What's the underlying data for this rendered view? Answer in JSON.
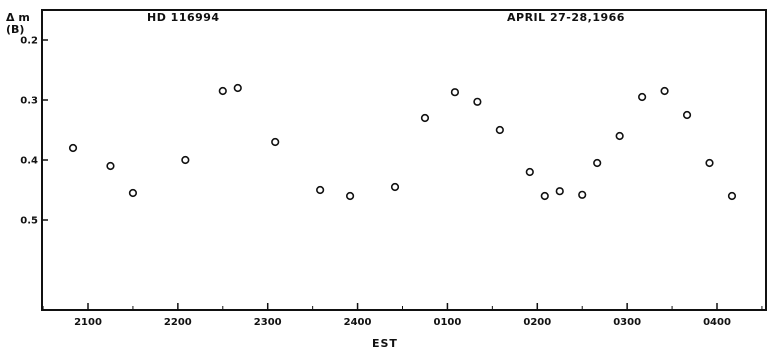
{
  "chart_data": {
    "type": "scatter",
    "title": "",
    "xlabel": "EST",
    "ylabel": "Δ m",
    "ylabel_sub": "(B)",
    "annotations": [
      "HD 116994",
      "APRIL 27-28,1966"
    ],
    "y_inverted": true,
    "ylim": [
      0.15,
      0.65
    ],
    "yticks": [
      "0.2",
      "0.3",
      "0.4",
      "0.5"
    ],
    "xticks": [
      "2100",
      "2200",
      "2300",
      "2400",
      "0100",
      "0200",
      "0300",
      "0400"
    ],
    "grid": false,
    "points": [
      {
        "x": "2050",
        "y": 0.38
      },
      {
        "x": "2115",
        "y": 0.41
      },
      {
        "x": "2130",
        "y": 0.455
      },
      {
        "x": "2205",
        "y": 0.4
      },
      {
        "x": "2230",
        "y": 0.285
      },
      {
        "x": "2240",
        "y": 0.28
      },
      {
        "x": "2305",
        "y": 0.37
      },
      {
        "x": "2335",
        "y": 0.45
      },
      {
        "x": "2355",
        "y": 0.46
      },
      {
        "x": "2425",
        "y": 0.445
      },
      {
        "x": "2445",
        "y": 0.33
      },
      {
        "x": "0105",
        "y": 0.287
      },
      {
        "x": "0120",
        "y": 0.303
      },
      {
        "x": "0135",
        "y": 0.35
      },
      {
        "x": "0155",
        "y": 0.42
      },
      {
        "x": "0205",
        "y": 0.46
      },
      {
        "x": "0215",
        "y": 0.452
      },
      {
        "x": "0230",
        "y": 0.458
      },
      {
        "x": "0240",
        "y": 0.405
      },
      {
        "x": "0255",
        "y": 0.36
      },
      {
        "x": "0310",
        "y": 0.295
      },
      {
        "x": "0325",
        "y": 0.285
      },
      {
        "x": "0340",
        "y": 0.325
      },
      {
        "x": "0355",
        "y": 0.405
      },
      {
        "x": "0410",
        "y": 0.46
      }
    ]
  }
}
